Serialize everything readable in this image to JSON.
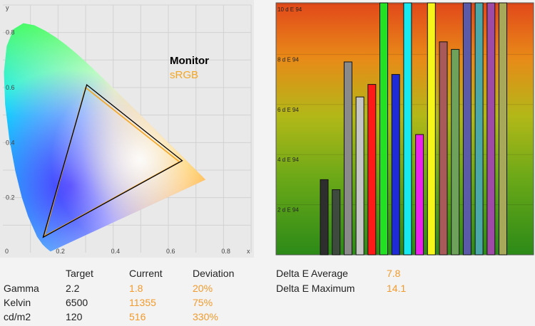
{
  "cie": {
    "legend": {
      "monitor_label": "Monitor",
      "srgb_label": "sRGB"
    },
    "x_ticks": [
      "0",
      "0.2",
      "0.4",
      "0.6",
      "0.8"
    ],
    "y_ticks": [
      "0.2",
      "0.4",
      "0.6",
      "0.8"
    ],
    "x_axis_label": "x",
    "y_axis_label": "y",
    "monitor_gamut": [
      [
        0.64,
        0.33
      ],
      [
        0.3,
        0.6
      ],
      [
        0.15,
        0.06
      ]
    ],
    "srgb_gamut": [
      [
        0.64,
        0.33
      ],
      [
        0.3,
        0.6
      ],
      [
        0.15,
        0.06
      ]
    ],
    "colors": {
      "monitor": "#000000",
      "srgb": "#f5a623"
    }
  },
  "chart_data": [
    {
      "type": "bar",
      "title": "",
      "ylabel": "",
      "ylim": [
        0,
        10
      ],
      "y_tick_labels": [
        "2 d E 94",
        "4 d E 94",
        "6 d E 94",
        "8 d E 94",
        "10 d E 94"
      ],
      "y_ticks": [
        2,
        4,
        6,
        8,
        10
      ],
      "bars": [
        {
          "value": 3.0,
          "color": "#2e2e2e"
        },
        {
          "value": 2.6,
          "color": "#3f4a3f"
        },
        {
          "value": 7.7,
          "color": "#8a8a8a"
        },
        {
          "value": 6.3,
          "color": "#c6c6c6"
        },
        {
          "value": 6.8,
          "color": "#ff1a1a"
        },
        {
          "value": 10.0,
          "color": "#22e022"
        },
        {
          "value": 7.2,
          "color": "#1f2bd6"
        },
        {
          "value": 10.0,
          "color": "#18e8f0"
        },
        {
          "value": 4.8,
          "color": "#ee22ee"
        },
        {
          "value": 10.0,
          "color": "#f6f61a"
        },
        {
          "value": 8.5,
          "color": "#a85a5a"
        },
        {
          "value": 8.2,
          "color": "#6ea15a"
        },
        {
          "value": 10.0,
          "color": "#5a5aa8"
        },
        {
          "value": 10.0,
          "color": "#4aa8a8"
        },
        {
          "value": 10.0,
          "color": "#a04aa8"
        },
        {
          "value": 10.0,
          "color": "#a8a85a"
        }
      ]
    }
  ],
  "table": {
    "headers": [
      "Target",
      "Current",
      "Deviation"
    ],
    "rows": [
      {
        "label": "Gamma",
        "target": "2.2",
        "current": "1.8",
        "deviation": "20%"
      },
      {
        "label": "Kelvin",
        "target": "6500",
        "current": "11355",
        "deviation": "75%"
      },
      {
        "label": "cd/m2",
        "target": "120",
        "current": "516",
        "deviation": "330%"
      }
    ]
  },
  "delta_e": {
    "average_label": "Delta E Average",
    "average_value": "7.8",
    "maximum_label": "Delta E Maximum",
    "maximum_value": "14.1"
  }
}
